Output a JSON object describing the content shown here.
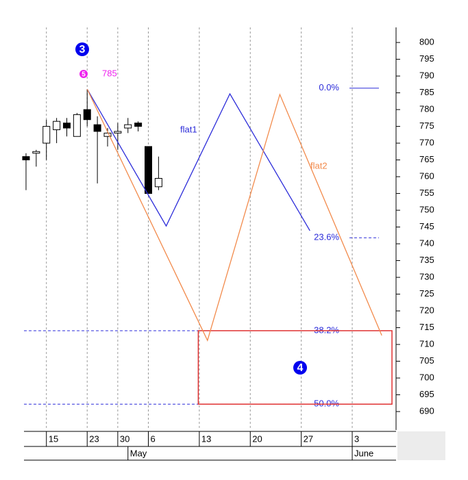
{
  "chart_data": {
    "type": "candlestick",
    "x": [
      0,
      1,
      2,
      3,
      4,
      5,
      6,
      7,
      8,
      9,
      10,
      11,
      12,
      13
    ],
    "open": [
      766,
      767,
      770,
      774,
      776,
      772,
      780,
      775.5,
      772,
      773,
      774.5,
      776,
      769,
      757
    ],
    "high": [
      767,
      768,
      777,
      777.5,
      777.5,
      779,
      786,
      778,
      774.5,
      776,
      777.5,
      776.5,
      769,
      766
    ],
    "low": [
      756,
      763,
      765,
      770,
      772,
      772,
      775,
      758,
      769,
      768,
      773,
      773.5,
      755,
      756
    ],
    "close": [
      765,
      767.5,
      775,
      776.5,
      774.5,
      778.5,
      777,
      773.5,
      773,
      773.5,
      775.5,
      775,
      755,
      759.5
    ],
    "up_color": "#ffffff",
    "down_color": "#000000",
    "lines": [
      {
        "name": "flat1",
        "color": "#2b2bd9",
        "x": [
          6,
          13.75,
          20,
          27.85
        ],
        "values": [
          786.1,
          745.3,
          784.7,
          743.9
        ]
      },
      {
        "name": "flat2",
        "color": "#f28a4b",
        "x": [
          6,
          17.8,
          24.9,
          34.9
        ],
        "values": [
          786.1,
          711.2,
          784.5,
          712.7
        ]
      }
    ],
    "fib_levels": [
      {
        "label": "0.0%",
        "value": 786.4,
        "style": "solid"
      },
      {
        "label": "23.6%",
        "value": 741.8,
        "style": "dashed"
      },
      {
        "label": "38.2%",
        "value": 714.1,
        "style": "dashed"
      },
      {
        "label": "50.0%",
        "value": 692.2,
        "style": "dashed"
      }
    ],
    "fib_color": "#2b2bd9",
    "box": {
      "x": [
        16.9,
        35.9
      ],
      "values": [
        714.1,
        692.2
      ],
      "color": "#e03030"
    },
    "wave_labels": [
      {
        "label": "3"
      },
      {
        "label": "5",
        "text": "785"
      },
      {
        "label": "4"
      }
    ],
    "xlim": [
      -0.2,
      36.3
    ],
    "ylim": [
      684.5,
      804.5
    ],
    "yticks": [
      690,
      695,
      700,
      705,
      710,
      715,
      720,
      725,
      730,
      735,
      740,
      745,
      750,
      755,
      760,
      765,
      770,
      775,
      780,
      785,
      790,
      795,
      800
    ],
    "xticks": [
      {
        "value": 2,
        "label": "15"
      },
      {
        "value": 6,
        "label": "23"
      },
      {
        "value": 9,
        "label": "30"
      },
      {
        "value": 12,
        "label": "6"
      },
      {
        "value": 17,
        "label": "13"
      },
      {
        "value": 22,
        "label": "20"
      },
      {
        "value": 27,
        "label": "27"
      },
      {
        "value": 32,
        "label": "3"
      }
    ],
    "month_ticks": [
      {
        "value": 10,
        "label": "May"
      },
      {
        "value": 32,
        "label": "June"
      }
    ],
    "grid": true
  }
}
